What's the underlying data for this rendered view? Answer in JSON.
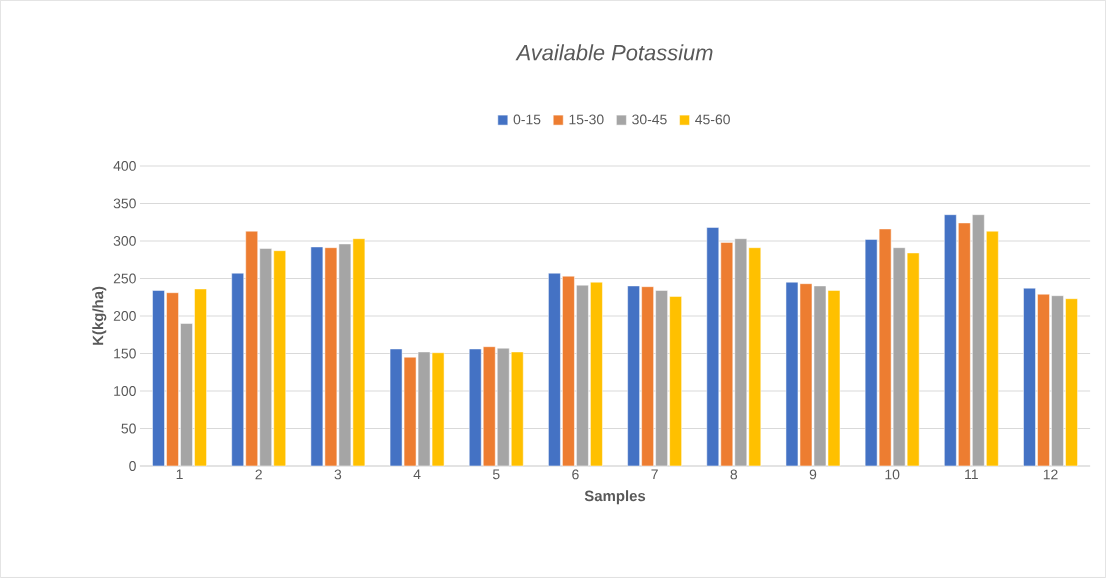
{
  "chart_data": {
    "type": "bar",
    "title": "*Available Potassium*",
    "xlabel": "Samples",
    "ylabel": "K(kg/ha)",
    "categories": [
      "1",
      "2",
      "3",
      "4",
      "5",
      "6",
      "7",
      "8",
      "9",
      "10",
      "11",
      "12"
    ],
    "series": [
      {
        "name": "0-15",
        "color": "#4472c4",
        "values": [
          234,
          257,
          292,
          156,
          156,
          257,
          240,
          318,
          245,
          302,
          335,
          237
        ]
      },
      {
        "name": "15-30",
        "color": "#ed7d31",
        "values": [
          231,
          313,
          291,
          145,
          159,
          253,
          239,
          298,
          243,
          316,
          324,
          229
        ]
      },
      {
        "name": "30-45",
        "color": "#a5a5a5",
        "values": [
          190,
          290,
          296,
          152,
          157,
          241,
          234,
          303,
          240,
          291,
          335,
          227
        ]
      },
      {
        "name": "45-60",
        "color": "#ffc000",
        "values": [
          236,
          287,
          303,
          151,
          152,
          245,
          226,
          291,
          234,
          284,
          313,
          223
        ]
      }
    ],
    "ylim": [
      0,
      400
    ],
    "yticks": [
      0,
      50,
      100,
      150,
      200,
      250,
      300,
      350,
      400
    ],
    "grid": "y",
    "legend": "top"
  }
}
